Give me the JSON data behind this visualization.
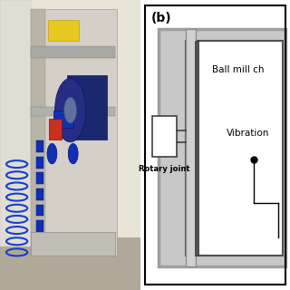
{
  "fig_width": 3.2,
  "fig_height": 3.2,
  "dpi": 100,
  "bg_color": "#ffffff",
  "panel_b_label": "(b)",
  "text_color": "#000000",
  "rotary_joint_label": "Rotary joint",
  "ball_mill_label": "Ball mill ch",
  "vibration_label": "Vibration",
  "photo_bg": "#c8c5bc",
  "room_wall": "#e8e4d8",
  "machine_silver": "#d0d0cc",
  "machine_dark": "#a0a0a0",
  "yellow_sticker": "#e8c820",
  "blue_motor": "#1a2870",
  "blue_hose": "#1030b0",
  "red_part": "#c83020",
  "gray_metal": "#b0b0b0",
  "schematic_outer_gray": "#c8c8c8",
  "schematic_inner_white": "#ffffff",
  "schematic_border": "#000000",
  "shaft_gray": "#c0c0c0",
  "wall_dark": "#505050",
  "line_dark": "#404040"
}
